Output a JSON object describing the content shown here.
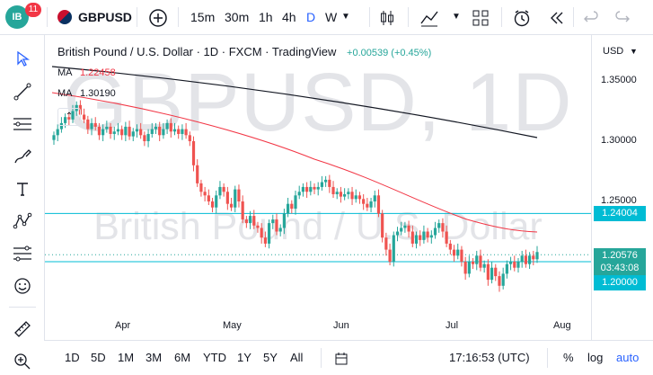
{
  "header": {
    "logo_text": "IB",
    "notification_count": "11",
    "symbol": "GBPUSD",
    "intervals": [
      "15m",
      "30m",
      "1h",
      "4h",
      "D",
      "W"
    ],
    "active_interval": "D",
    "icons": [
      "add-symbol-icon",
      "chevron-down-icon",
      "candle-type-icon",
      "indicators-icon",
      "chevron-down-icon",
      "layout-grid-icon",
      "alert-clock-icon",
      "replay-icon",
      "undo-icon",
      "redo-icon"
    ]
  },
  "legend": {
    "title": "British Pound / U.S. Dollar · 1D · FXCM · TradingView",
    "change": "+0.00539 (+0.45%)",
    "ma1_label": "MA",
    "ma1_value": "1.22458",
    "ma2_label": "MA",
    "ma2_value": "1.30190",
    "colors": {
      "change": "#26a69a",
      "ma1": "#f23645",
      "ma2": "#131722"
    }
  },
  "watermark": {
    "symbol": "GBPUSD, 1D",
    "description": "British Pound / U.S. Dollar"
  },
  "price_scale": {
    "currency": "USD",
    "labels": [
      "1.35000",
      "1.30000",
      "1.25000"
    ],
    "tags": [
      {
        "text": "1.24004",
        "color": "#00bcd4"
      },
      {
        "text": "1.20576",
        "color": "#26a69a"
      },
      {
        "text": "03:43:08",
        "color": "#26a69a"
      },
      {
        "text": "1.20000",
        "color": "#00bcd4"
      }
    ]
  },
  "time_scale": {
    "labels": [
      "Apr",
      "May",
      "Jun",
      "Jul",
      "Aug"
    ]
  },
  "bottom": {
    "ranges": [
      "1D",
      "5D",
      "1M",
      "3M",
      "6M",
      "YTD",
      "1Y",
      "5Y",
      "All"
    ],
    "time": "17:16:53 (UTC)",
    "percent": "%",
    "log": "log",
    "auto": "auto"
  },
  "left_tools": [
    "cursor-icon",
    "trend-line-icon",
    "horizontal-lines-icon",
    "brush-icon",
    "text-icon",
    "pattern-icon",
    "fib-icon",
    "emoji-icon",
    "ruler-icon",
    "zoom-icon"
  ],
  "chart_data": {
    "type": "candlestick",
    "symbol": "GBPUSD",
    "interval": "1D",
    "x_labels": [
      "Apr",
      "May",
      "Jun",
      "Jul",
      "Aug"
    ],
    "y_ticks": [
      1.35,
      1.3,
      1.25
    ],
    "last_close": 1.20576,
    "horizontal_lines": [
      1.24004,
      1.2
    ],
    "ma_fast_last": 1.22458,
    "ma_slow_last": 1.3019,
    "closes": [
      1.305,
      1.31,
      1.315,
      1.32,
      1.318,
      1.325,
      1.33,
      1.322,
      1.318,
      1.31,
      1.315,
      1.312,
      1.305,
      1.31,
      1.312,
      1.306,
      1.308,
      1.31,
      1.305,
      1.312,
      1.304,
      1.308,
      1.31,
      1.305,
      1.3,
      1.306,
      1.31,
      1.312,
      1.305,
      1.31,
      1.315,
      1.308,
      1.31,
      1.306,
      1.31,
      1.305,
      1.3,
      1.28,
      1.265,
      1.258,
      1.255,
      1.25,
      1.245,
      1.255,
      1.262,
      1.258,
      1.248,
      1.245,
      1.26,
      1.25,
      1.235,
      1.232,
      1.238,
      1.23,
      1.228,
      1.22,
      1.215,
      1.232,
      1.235,
      1.225,
      1.228,
      1.24,
      1.248,
      1.244,
      1.255,
      1.258,
      1.262,
      1.258,
      1.262,
      1.26,
      1.262,
      1.266,
      1.268,
      1.262,
      1.256,
      1.258,
      1.254,
      1.256,
      1.258,
      1.252,
      1.255,
      1.252,
      1.248,
      1.245,
      1.25,
      1.255,
      1.24,
      1.22,
      1.21,
      1.2,
      1.222,
      1.225,
      1.228,
      1.23,
      1.225,
      1.215,
      1.222,
      1.218,
      1.225,
      1.22,
      1.222,
      1.228,
      1.232,
      1.225,
      1.215,
      1.21,
      1.205,
      1.21,
      1.2,
      1.19,
      1.2,
      1.198,
      1.205,
      1.195,
      1.198,
      1.185,
      1.195,
      1.188,
      1.18,
      1.19,
      1.198,
      1.2,
      1.195,
      1.2,
      1.205,
      1.198,
      1.205,
      1.202,
      1.208
    ]
  }
}
